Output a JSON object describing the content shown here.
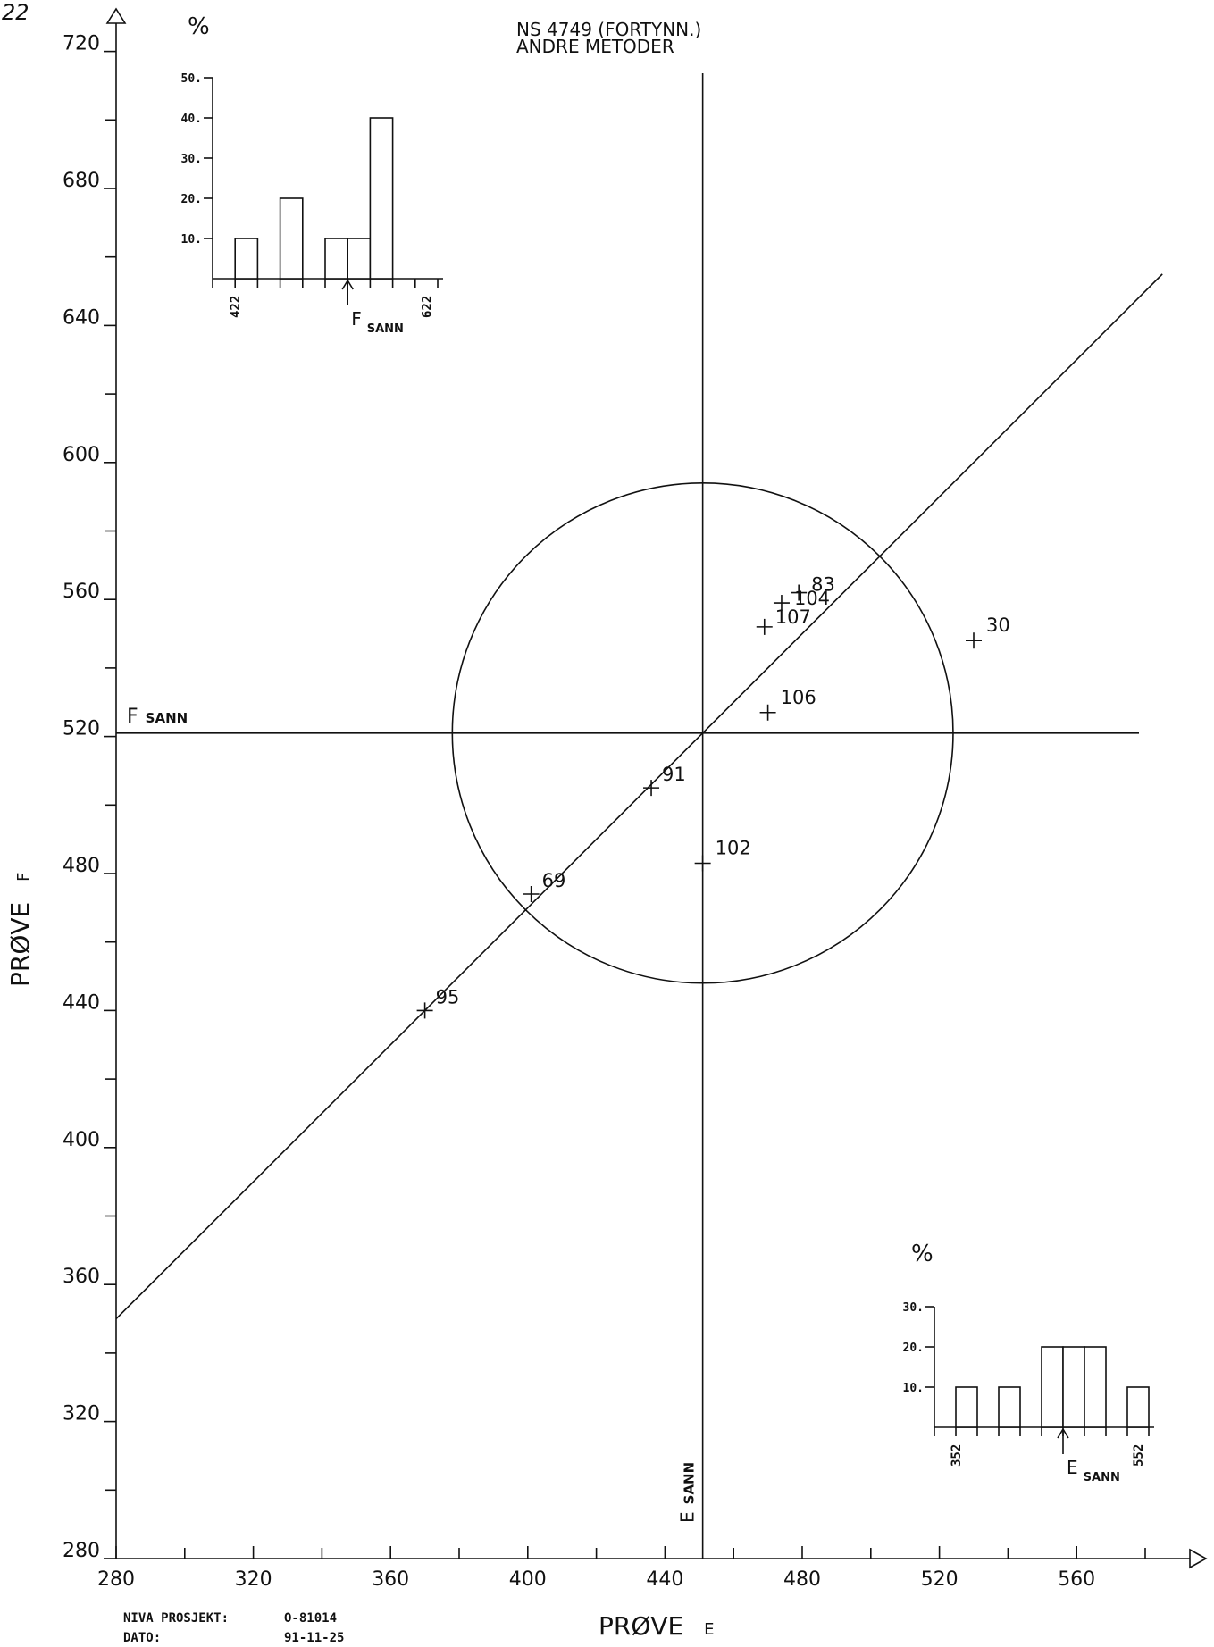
{
  "page_number": "22",
  "chart_data": {
    "type": "scatter",
    "title": "NS 4749 (FORTYNN.)",
    "subtitle": "ANDRE METODER",
    "xlabel": "PRØVE",
    "xlabel_suffix": "E",
    "ylabel": "PRØVE",
    "ylabel_suffix": "F",
    "xlim": [
      280,
      600
    ],
    "ylim": [
      280,
      740
    ],
    "x_ticks": [
      280,
      320,
      360,
      400,
      440,
      480,
      520,
      560
    ],
    "y_ticks": [
      280,
      320,
      360,
      400,
      440,
      480,
      520,
      560,
      600,
      640,
      680,
      720
    ],
    "x_minor_step": 20,
    "y_minor_step": 20,
    "true_value_e": 451,
    "true_value_f": 521,
    "true_label_main_e": "E",
    "true_label_main_f": "F",
    "true_label_sub": "SANN",
    "circle_radius": 73,
    "diagonal_line": [
      [
        280,
        350
      ],
      [
        585,
        655
      ]
    ],
    "points": [
      {
        "label": "83",
        "x": 479,
        "y": 562
      },
      {
        "label": "104",
        "x": 474,
        "y": 559
      },
      {
        "label": "107",
        "x": 469,
        "y": 552
      },
      {
        "label": "30",
        "x": 530,
        "y": 548
      },
      {
        "label": "106",
        "x": 470,
        "y": 527
      },
      {
        "label": "91",
        "x": 436,
        "y": 505
      },
      {
        "label": "102",
        "x": 451,
        "y": 483
      },
      {
        "label": "69",
        "x": 401,
        "y": 474
      },
      {
        "label": "95",
        "x": 370,
        "y": 440
      }
    ],
    "histograms": [
      {
        "name": "F",
        "ylabel": "%",
        "y_ticks": [
          "10.",
          "20.",
          "30.",
          "40.",
          "50."
        ],
        "ymax": 50,
        "xrange_labels": [
          "422",
          "622"
        ],
        "bin_count": 10,
        "values": [
          0,
          10,
          0,
          20,
          0,
          10,
          10,
          40,
          0,
          0
        ],
        "true_bin_position": 6,
        "true_label_main": "F",
        "true_label_sub": "SANN"
      },
      {
        "name": "E",
        "ylabel": "%",
        "y_ticks": [
          "10.",
          "20.",
          "30."
        ],
        "ymax": 30,
        "xrange_labels": [
          "352",
          "552"
        ],
        "bin_count": 10,
        "values": [
          0,
          10,
          0,
          10,
          0,
          20,
          20,
          20,
          0,
          10
        ],
        "true_bin_position": 6,
        "true_label_main": "E",
        "true_label_sub": "SANN"
      }
    ]
  },
  "footer": {
    "project_label": "NIVA PROSJEKT:",
    "project_value": "O-81014",
    "date_label": "DATO:",
    "date_value": "91-11-25"
  }
}
